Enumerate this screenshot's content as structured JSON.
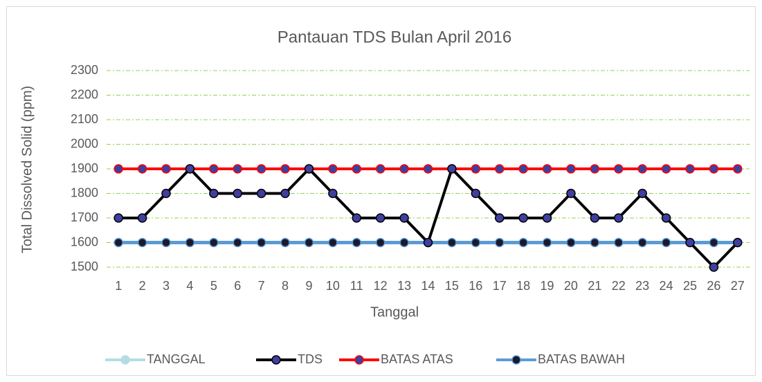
{
  "chart_data": {
    "type": "line",
    "title": "Pantauan TDS Bulan April 2016",
    "x_label": "Tanggal",
    "y_label": "Total Dissolved Solid (ppm)",
    "categories": [
      "1",
      "2",
      "3",
      "4",
      "5",
      "6",
      "7",
      "8",
      "9",
      "10",
      "11",
      "12",
      "13",
      "14",
      "15",
      "16",
      "17",
      "18",
      "19",
      "20",
      "21",
      "22",
      "23",
      "24",
      "25",
      "26",
      "27"
    ],
    "series": [
      {
        "name": "TANGGAL",
        "color": "#b4dde3",
        "marker": "#b4dde3",
        "values": [
          null,
          null,
          null,
          null,
          null,
          null,
          null,
          null,
          null,
          null,
          null,
          null,
          null,
          null,
          null,
          null,
          null,
          null,
          null,
          null,
          null,
          null,
          null,
          null,
          null,
          null,
          null
        ]
      },
      {
        "name": "TDS",
        "color": "#000000",
        "marker": "#3f3f9f",
        "values": [
          1700,
          1700,
          1800,
          1900,
          1800,
          1800,
          1800,
          1800,
          1900,
          1800,
          1700,
          1700,
          1700,
          1600,
          1900,
          1800,
          1700,
          1700,
          1700,
          1800,
          1700,
          1700,
          1800,
          1700,
          1600,
          1500,
          1600
        ]
      },
      {
        "name": "BATAS ATAS",
        "color": "#ff0000",
        "marker": "#3f3f9f",
        "values": [
          1900,
          1900,
          1900,
          1900,
          1900,
          1900,
          1900,
          1900,
          1900,
          1900,
          1900,
          1900,
          1900,
          1900,
          1900,
          1900,
          1900,
          1900,
          1900,
          1900,
          1900,
          1900,
          1900,
          1900,
          1900,
          1900,
          1900
        ]
      },
      {
        "name": "BATAS BAWAH",
        "color": "#5b9bd5",
        "marker": "#1a1a2e",
        "values": [
          1600,
          1600,
          1600,
          1600,
          1600,
          1600,
          1600,
          1600,
          1600,
          1600,
          1600,
          1600,
          1600,
          1600,
          1600,
          1600,
          1600,
          1600,
          1600,
          1600,
          1600,
          1600,
          1600,
          1600,
          1600,
          1600,
          1600
        ]
      }
    ],
    "ylim": [
      1500,
      2300
    ],
    "yticks": [
      1500,
      1600,
      1700,
      1800,
      1900,
      2000,
      2100,
      2200,
      2300
    ],
    "grid": true,
    "grid_color": "#92d050",
    "legend": "bottom"
  }
}
